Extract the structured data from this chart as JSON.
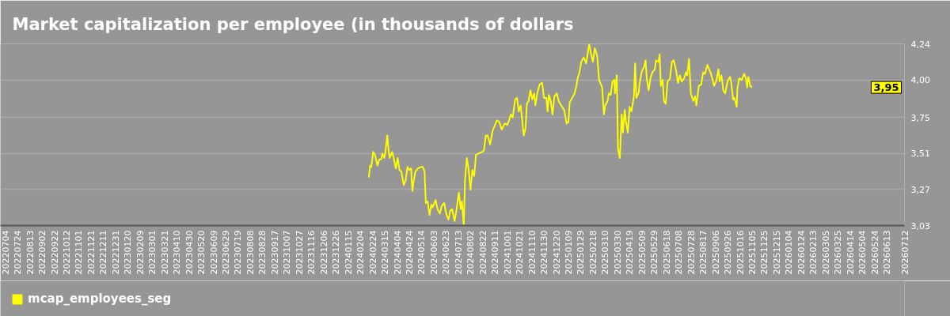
{
  "chart_data": {
    "type": "line",
    "title": "Market capitalization per employee (in thousands of dollars",
    "x": [
      "2024-02-18",
      "2024-02-20",
      "2024-02-22",
      "2024-02-25",
      "2024-02-28",
      "2024-03-03",
      "2024-03-06",
      "2024-03-09",
      "2024-03-11",
      "2024-03-14",
      "2024-03-16",
      "2024-03-19",
      "2024-03-21",
      "2024-03-23",
      "2024-03-27",
      "2024-03-30",
      "2024-04-02",
      "2024-04-05",
      "2024-04-08",
      "2024-04-11",
      "2024-04-15",
      "2024-04-18",
      "2024-04-21",
      "2024-04-24",
      "2024-04-27",
      "2024-04-29",
      "2024-05-01",
      "2024-05-04",
      "2024-05-08",
      "2024-05-13",
      "2024-05-16",
      "2024-05-19",
      "2024-05-21",
      "2024-05-24",
      "2024-05-27",
      "2024-05-30",
      "2024-06-01",
      "2024-06-06",
      "2024-06-09",
      "2024-06-13",
      "2024-06-16",
      "2024-06-20",
      "2024-06-24",
      "2024-06-27",
      "2024-06-30",
      "2024-07-03",
      "2024-07-07",
      "2024-07-10",
      "2024-07-14",
      "2024-07-17",
      "2024-07-19",
      "2024-07-22",
      "2024-07-24",
      "2024-07-27",
      "2024-07-30",
      "2024-08-02",
      "2024-08-05",
      "2024-08-08",
      "2024-08-11",
      "2024-08-15",
      "2024-08-21",
      "2024-08-24",
      "2024-08-27",
      "2024-08-30",
      "2024-09-03",
      "2024-09-07",
      "2024-09-10",
      "2024-09-14",
      "2024-09-18",
      "2024-09-22",
      "2024-09-27",
      "2024-10-01",
      "2024-10-04",
      "2024-10-07",
      "2024-10-10",
      "2024-10-14",
      "2024-10-17",
      "2024-10-20",
      "2024-10-23",
      "2024-10-28",
      "2024-10-31",
      "2024-11-02",
      "2024-11-05",
      "2024-11-08",
      "2024-11-11",
      "2024-11-14",
      "2024-11-16",
      "2024-11-19",
      "2024-11-23",
      "2024-11-27",
      "2024-11-30",
      "2024-12-04",
      "2024-12-06",
      "2024-12-08",
      "2024-12-11",
      "2024-12-14",
      "2024-12-17",
      "2024-12-21",
      "2024-12-24",
      "2024-12-28",
      "2025-01-02",
      "2025-01-06",
      "2025-01-09",
      "2025-01-11",
      "2025-01-15",
      "2025-01-19",
      "2025-01-22",
      "2025-01-24",
      "2025-01-27",
      "2025-01-30",
      "2025-02-03",
      "2025-02-07",
      "2025-02-10",
      "2025-02-12",
      "2025-02-15",
      "2025-02-18",
      "2025-02-21",
      "2025-02-25",
      "2025-02-28",
      "2025-03-02",
      "2025-03-05",
      "2025-03-08",
      "2025-03-10",
      "2025-03-14",
      "2025-03-16",
      "2025-03-19",
      "2025-03-22",
      "2025-03-25",
      "2025-03-26",
      "2025-03-29",
      "2025-03-31",
      "2025-04-03",
      "2025-04-06",
      "2025-04-08",
      "2025-04-11",
      "2025-04-13",
      "2025-04-16",
      "2025-04-19",
      "2025-04-22",
      "2025-04-26",
      "2025-04-28",
      "2025-04-30",
      "2025-05-04",
      "2025-05-05",
      "2025-05-09",
      "2025-05-12",
      "2025-05-15",
      "2025-05-17",
      "2025-05-20",
      "2025-05-23",
      "2025-05-26",
      "2025-05-30",
      "2025-06-01",
      "2025-06-05",
      "2025-06-07",
      "2025-06-09",
      "2025-06-12",
      "2025-06-14",
      "2025-06-17",
      "2025-06-20",
      "2025-06-24",
      "2025-06-27",
      "2025-06-30",
      "2025-07-04",
      "2025-07-07",
      "2025-07-10",
      "2025-07-13",
      "2025-07-17",
      "2025-07-20",
      "2025-07-22",
      "2025-07-25",
      "2025-07-28",
      "2025-08-01",
      "2025-08-04",
      "2025-08-06",
      "2025-08-10",
      "2025-08-14",
      "2025-08-17",
      "2025-08-20",
      "2025-08-24",
      "2025-08-29",
      "2025-09-01",
      "2025-09-04",
      "2025-09-08",
      "2025-09-11",
      "2025-09-13",
      "2025-09-16",
      "2025-09-19",
      "2025-09-22",
      "2025-09-26",
      "2025-09-30",
      "2025-10-02",
      "2025-10-05",
      "2025-10-07",
      "2025-10-11",
      "2025-10-12",
      "2025-10-15",
      "2025-10-19",
      "2025-10-23",
      "2025-10-26",
      "2025-10-28",
      "2025-10-30",
      "2025-11-02",
      "2025-11-05"
    ],
    "series": [
      {
        "name": "mcap_employees_seg",
        "color": "#ffff00",
        "values": [
          3.35,
          3.43,
          3.42,
          3.52,
          3.5,
          3.43,
          3.47,
          3.47,
          3.51,
          3.48,
          3.52,
          3.63,
          3.54,
          3.48,
          3.52,
          3.47,
          3.41,
          3.48,
          3.4,
          3.39,
          3.3,
          3.33,
          3.42,
          3.4,
          3.41,
          3.26,
          3.32,
          3.39,
          3.41,
          3.42,
          3.42,
          3.39,
          3.18,
          3.19,
          3.1,
          3.17,
          3.15,
          3.2,
          3.14,
          3.11,
          3.16,
          3.18,
          3.1,
          3.07,
          3.13,
          3.14,
          3.06,
          3.13,
          3.25,
          3.14,
          3.19,
          3.03,
          3.33,
          3.48,
          3.4,
          3.27,
          3.4,
          3.36,
          3.5,
          3.51,
          3.52,
          3.53,
          3.63,
          3.63,
          3.57,
          3.66,
          3.69,
          3.73,
          3.72,
          3.67,
          3.71,
          3.7,
          3.73,
          3.77,
          3.75,
          3.87,
          3.88,
          3.79,
          3.83,
          3.63,
          3.68,
          3.84,
          3.86,
          3.93,
          3.87,
          3.91,
          3.83,
          3.91,
          3.97,
          3.98,
          3.88,
          3.88,
          3.79,
          3.9,
          3.86,
          3.77,
          3.89,
          3.91,
          3.86,
          3.83,
          3.8,
          3.71,
          3.72,
          3.85,
          3.88,
          3.91,
          3.96,
          4.01,
          4.05,
          4.12,
          4.15,
          4.11,
          4.19,
          4.24,
          4.17,
          4.12,
          4.21,
          4.16,
          4.0,
          3.98,
          3.95,
          3.77,
          3.83,
          3.86,
          3.91,
          3.9,
          3.99,
          4.0,
          3.91,
          4.03,
          3.54,
          3.48,
          3.77,
          3.65,
          3.8,
          3.72,
          3.65,
          3.82,
          3.79,
          3.89,
          4.11,
          3.88,
          3.92,
          3.97,
          4.06,
          4.08,
          4.13,
          4.01,
          3.93,
          4.01,
          4.05,
          4.07,
          4.13,
          4.12,
          4.17,
          3.96,
          4.0,
          3.86,
          3.84,
          3.99,
          4.01,
          4.12,
          4.13,
          4.06,
          3.98,
          4.03,
          3.99,
          4.01,
          4.05,
          4.03,
          4.14,
          3.91,
          3.86,
          3.89,
          3.83,
          3.96,
          3.97,
          4.05,
          4.04,
          4.1,
          4.05,
          4.01,
          3.96,
          4.0,
          4.07,
          3.99,
          4.03,
          3.93,
          3.91,
          3.99,
          4.02,
          3.98,
          3.87,
          3.88,
          3.82,
          3.94,
          4.01,
          4.0,
          4.04,
          4.01,
          3.95,
          4.02,
          3.96,
          3.95
        ]
      }
    ],
    "xlim": [
      "2022-06-26",
      "2026-07-12"
    ],
    "xticks": [
      {
        "value": "2022-07-04",
        "label": "20220704"
      },
      {
        "value": "2022-07-24",
        "label": "20220724"
      },
      {
        "value": "2022-08-13",
        "label": "20220813"
      },
      {
        "value": "2022-09-02",
        "label": "20220902"
      },
      {
        "value": "2022-09-22",
        "label": "20220922"
      },
      {
        "value": "2022-10-12",
        "label": "20221012"
      },
      {
        "value": "2022-11-01",
        "label": "20221101"
      },
      {
        "value": "2022-11-21",
        "label": "20221121"
      },
      {
        "value": "2022-12-11",
        "label": "20221211"
      },
      {
        "value": "2022-12-31",
        "label": "20221231"
      },
      {
        "value": "2023-01-20",
        "label": "20230120"
      },
      {
        "value": "2023-02-09",
        "label": "20230209"
      },
      {
        "value": "2023-03-01",
        "label": "20230301"
      },
      {
        "value": "2023-03-21",
        "label": "20230321"
      },
      {
        "value": "2023-04-10",
        "label": "20230410"
      },
      {
        "value": "2023-04-30",
        "label": "20230430"
      },
      {
        "value": "2023-05-20",
        "label": "20230520"
      },
      {
        "value": "2023-06-09",
        "label": "20230609"
      },
      {
        "value": "2023-06-29",
        "label": "20230629"
      },
      {
        "value": "2023-07-19",
        "label": "20230719"
      },
      {
        "value": "2023-08-08",
        "label": "20230808"
      },
      {
        "value": "2023-08-28",
        "label": "20230828"
      },
      {
        "value": "2023-09-17",
        "label": "20230917"
      },
      {
        "value": "2023-10-07",
        "label": "20231007"
      },
      {
        "value": "2023-10-27",
        "label": "20231027"
      },
      {
        "value": "2023-11-16",
        "label": "20231116"
      },
      {
        "value": "2023-12-06",
        "label": "20231206"
      },
      {
        "value": "2023-12-26",
        "label": "20231226"
      },
      {
        "value": "2024-01-15",
        "label": "20240115"
      },
      {
        "value": "2024-02-04",
        "label": "20240204"
      },
      {
        "value": "2024-02-24",
        "label": "20240224"
      },
      {
        "value": "2024-03-15",
        "label": "20240315"
      },
      {
        "value": "2024-04-04",
        "label": "20240404"
      },
      {
        "value": "2024-04-24",
        "label": "20240424"
      },
      {
        "value": "2024-05-14",
        "label": "20240514"
      },
      {
        "value": "2024-06-03",
        "label": "20240603"
      },
      {
        "value": "2024-06-23",
        "label": "20240623"
      },
      {
        "value": "2024-07-13",
        "label": "20240713"
      },
      {
        "value": "2024-08-02",
        "label": "20240802"
      },
      {
        "value": "2024-08-22",
        "label": "20240822"
      },
      {
        "value": "2024-09-11",
        "label": "20240911"
      },
      {
        "value": "2024-10-01",
        "label": "20241001"
      },
      {
        "value": "2024-10-21",
        "label": "20241021"
      },
      {
        "value": "2024-11-10",
        "label": "20241110"
      },
      {
        "value": "2024-11-30",
        "label": "20241130"
      },
      {
        "value": "2024-12-20",
        "label": "20241220"
      },
      {
        "value": "2025-01-09",
        "label": "20250109"
      },
      {
        "value": "2025-01-29",
        "label": "20250129"
      },
      {
        "value": "2025-02-18",
        "label": "20250218"
      },
      {
        "value": "2025-03-10",
        "label": "20250310"
      },
      {
        "value": "2025-03-30",
        "label": "20250330"
      },
      {
        "value": "2025-04-19",
        "label": "20250419"
      },
      {
        "value": "2025-05-09",
        "label": "20250509"
      },
      {
        "value": "2025-05-29",
        "label": "20250529"
      },
      {
        "value": "2025-06-18",
        "label": "20250618"
      },
      {
        "value": "2025-07-08",
        "label": "20250708"
      },
      {
        "value": "2025-07-28",
        "label": "20250728"
      },
      {
        "value": "2025-08-17",
        "label": "20250817"
      },
      {
        "value": "2025-09-06",
        "label": "20250906"
      },
      {
        "value": "2025-09-26",
        "label": "20250926"
      },
      {
        "value": "2025-10-16",
        "label": "20251016"
      },
      {
        "value": "2025-11-05",
        "label": "20251105"
      },
      {
        "value": "2025-11-25",
        "label": "20251125"
      },
      {
        "value": "2025-12-15",
        "label": "20251215"
      },
      {
        "value": "2026-01-04",
        "label": "20260104"
      },
      {
        "value": "2026-01-24",
        "label": "20260124"
      },
      {
        "value": "2026-02-13",
        "label": "20260213"
      },
      {
        "value": "2026-03-05",
        "label": "20260305"
      },
      {
        "value": "2026-03-25",
        "label": "20260325"
      },
      {
        "value": "2026-04-14",
        "label": "20260414"
      },
      {
        "value": "2026-05-04",
        "label": "20260504"
      },
      {
        "value": "2026-05-24",
        "label": "20260524"
      },
      {
        "value": "2026-06-13",
        "label": "20260613"
      },
      {
        "value": "2026-07-12",
        "label": "20260712"
      }
    ],
    "ylim": [
      3.03,
      4.24
    ],
    "yticks": [
      {
        "value": 3.03,
        "label": "3,03"
      },
      {
        "value": 3.27,
        "label": "3,27"
      },
      {
        "value": 3.51,
        "label": "3,51"
      },
      {
        "value": 3.75,
        "label": "3,75"
      },
      {
        "value": 4.0,
        "label": "4,00"
      },
      {
        "value": 4.24,
        "label": "4,24"
      }
    ],
    "grid": "y",
    "legend": "bottom left",
    "annotations": [
      {
        "text": "3,95",
        "y": 3.95
      }
    ]
  }
}
